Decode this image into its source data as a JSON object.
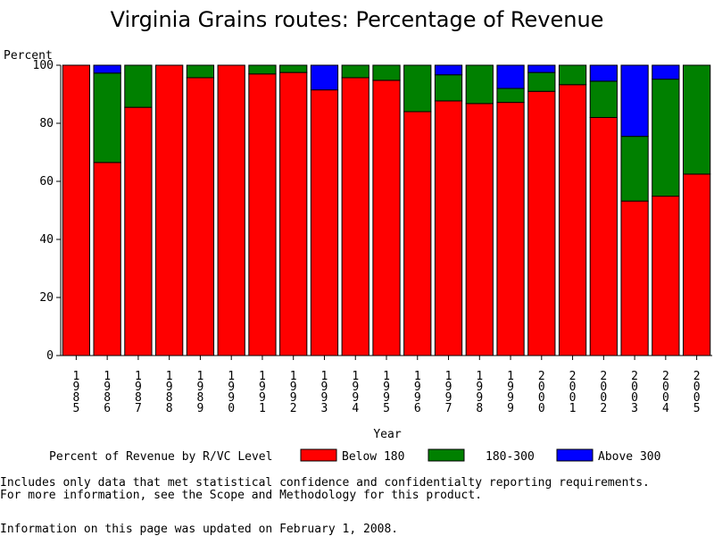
{
  "chart_data": {
    "type": "bar",
    "stacked": true,
    "title": "Virginia Grains routes: Percentage of Revenue",
    "ylabel": "Percent",
    "xlabel": "Year",
    "ylim": [
      0,
      100
    ],
    "yticks": [
      0,
      20,
      40,
      60,
      80,
      100
    ],
    "grid": false,
    "legend_position": "bottom",
    "legend_title": "Percent of Revenue by R/VC Level",
    "categories": [
      "1985",
      "1986",
      "1987",
      "1988",
      "1989",
      "1990",
      "1991",
      "1992",
      "1993",
      "1994",
      "1995",
      "1996",
      "1997",
      "1998",
      "1999",
      "2000",
      "2001",
      "2002",
      "2003",
      "2004",
      "2005"
    ],
    "series": [
      {
        "name": "Below 180",
        "color": "#ff0000",
        "values": [
          100,
          66.5,
          85.5,
          100,
          95.7,
          100,
          97,
          97.5,
          91.5,
          95.7,
          94.8,
          84,
          87.7,
          86.8,
          87.2,
          91,
          93.3,
          82,
          53.2,
          54.9,
          62.5
        ]
      },
      {
        "name": "180-300",
        "color": "#008000",
        "values": [
          0,
          30.8,
          14.5,
          0,
          4.3,
          0,
          3,
          2.5,
          0,
          4.3,
          5.2,
          16,
          9,
          13.2,
          4.8,
          6.5,
          6.7,
          12.5,
          22.3,
          40.3,
          37.5
        ]
      },
      {
        "name": "Above 300",
        "color": "#0000ff",
        "values": [
          0,
          2.7,
          0,
          0,
          0,
          0,
          0,
          0,
          8.5,
          0,
          0,
          0,
          3.3,
          0,
          8,
          2.5,
          0,
          5.5,
          24.5,
          4.8,
          0
        ]
      }
    ]
  },
  "notes": [
    "Includes only data that met statistical confidence and confidentialty reporting requirements.",
    "For more information, see the Scope and Methodology for this product."
  ],
  "updated": "Information on this page was updated on February 1, 2008."
}
